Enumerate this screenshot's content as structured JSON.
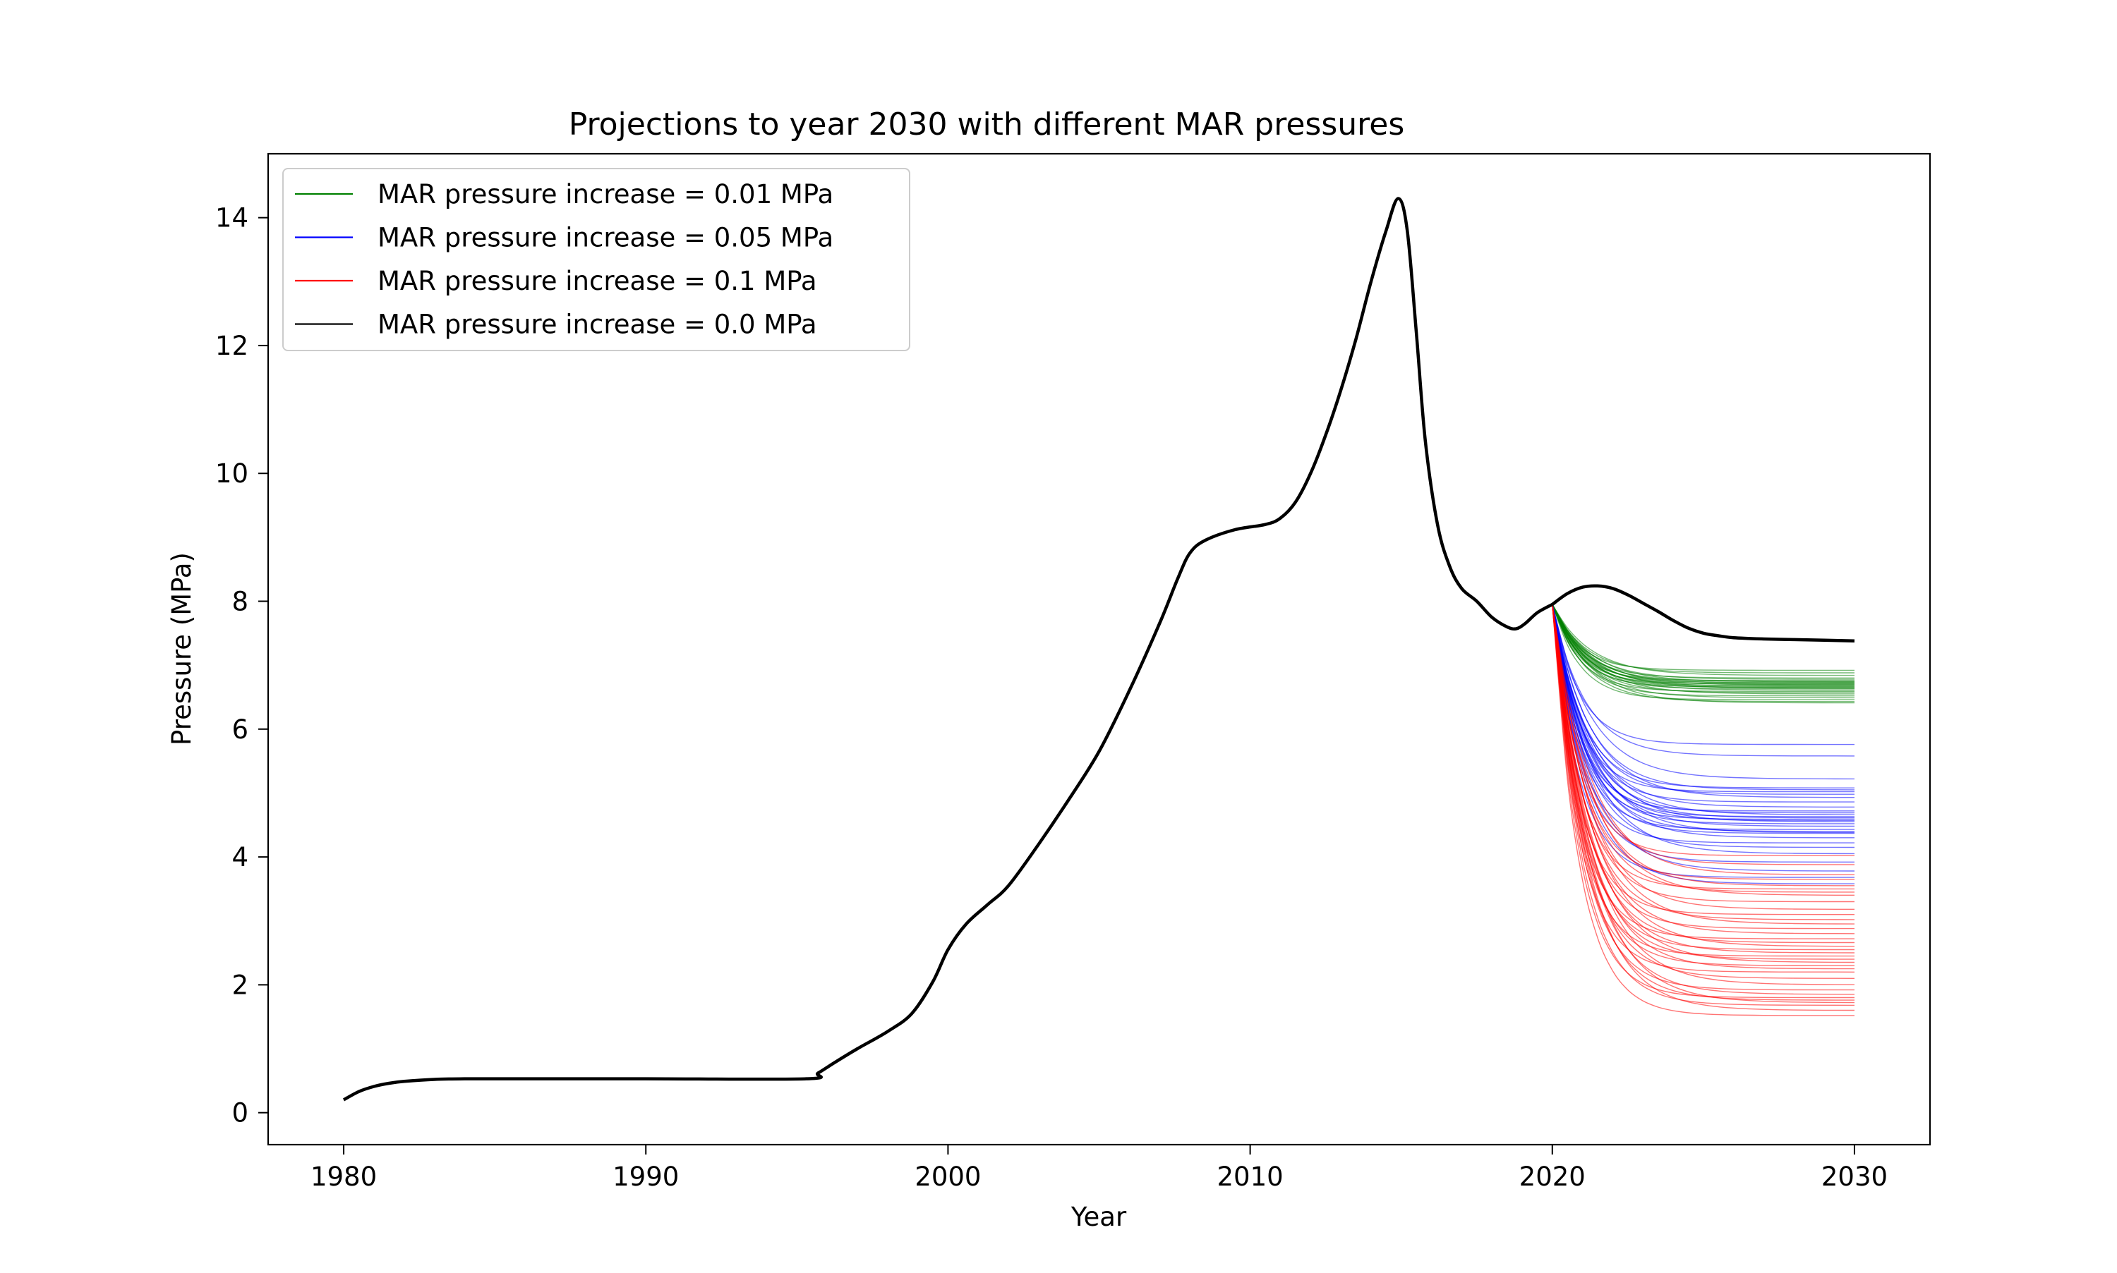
{
  "chart_data": {
    "type": "line",
    "title": "Projections to year 2030 with different MAR pressures",
    "xlabel": "Year",
    "ylabel": "Pressure (MPa)",
    "xlim": [
      1977.5,
      2032.5
    ],
    "ylim": [
      -0.5,
      15.0
    ],
    "xticks": [
      1980,
      1990,
      2000,
      2010,
      2020,
      2030
    ],
    "yticks": [
      0,
      2,
      4,
      6,
      8,
      10,
      12,
      14
    ],
    "grid": false,
    "legend_position": "upper-left",
    "legend": [
      {
        "label": "MAR pressure increase = 0.01 MPa",
        "color": "#008000"
      },
      {
        "label": "MAR pressure increase = 0.05 MPa",
        "color": "#0000ff"
      },
      {
        "label": "MAR pressure increase = 0.1 MPa",
        "color": "#ff0000"
      },
      {
        "label": "MAR pressure increase = 0.0 MPa",
        "color": "#000000"
      }
    ],
    "history": {
      "name": "MAR pressure increase = 0.0 MPa",
      "color": "#000000",
      "x": [
        1980,
        1980.5,
        1981,
        1981.5,
        1982,
        1983,
        1984,
        1986,
        1990,
        1995.3,
        1995.7,
        1996.3,
        1997,
        1998,
        1998.8,
        1999.5,
        2000,
        2000.6,
        2001.3,
        2002,
        2003,
        2004,
        2005,
        2006,
        2007,
        2007.6,
        2008,
        2008.5,
        2009.5,
        2010.5,
        2011,
        2011.5,
        2012,
        2012.5,
        2013,
        2013.5,
        2014,
        2014.5,
        2014.9,
        2015.2,
        2015.5,
        2015.8,
        2016.2,
        2016.6,
        2017,
        2017.5,
        2018,
        2018.5,
        2018.8,
        2019.1,
        2019.5,
        2020
      ],
      "y": [
        0.2,
        0.33,
        0.41,
        0.46,
        0.49,
        0.52,
        0.53,
        0.53,
        0.53,
        0.53,
        0.62,
        0.8,
        1.0,
        1.27,
        1.55,
        2.05,
        2.55,
        2.95,
        3.25,
        3.55,
        4.2,
        4.9,
        5.65,
        6.6,
        7.65,
        8.35,
        8.75,
        8.95,
        9.12,
        9.2,
        9.3,
        9.55,
        10.0,
        10.6,
        11.3,
        12.1,
        13.0,
        13.8,
        14.3,
        13.8,
        12.2,
        10.5,
        9.2,
        8.55,
        8.2,
        8.0,
        7.75,
        7.6,
        7.57,
        7.65,
        7.82,
        7.95
      ]
    },
    "projection_x": [
      2020,
      2020.5,
      2021,
      2021.5,
      2022,
      2022.5,
      2023,
      2023.5,
      2024,
      2024.5,
      2025,
      2025.5,
      2026,
      2027,
      2028,
      2029,
      2030
    ],
    "baseline_projection": {
      "name": "MAR pressure increase = 0.0 MPa",
      "color": "#000000",
      "y": [
        7.95,
        8.12,
        8.22,
        8.24,
        8.2,
        8.1,
        7.97,
        7.84,
        7.7,
        7.58,
        7.5,
        7.46,
        7.43,
        7.41,
        7.4,
        7.39,
        7.38
      ]
    },
    "ensembles": [
      {
        "name": "MAR pressure increase = 0.01 MPa",
        "color": "#008000",
        "start": 7.95,
        "end_values": [
          6.92,
          6.88,
          6.84,
          6.8,
          6.78,
          6.76,
          6.75,
          6.74,
          6.73,
          6.72,
          6.71,
          6.7,
          6.69,
          6.68,
          6.67,
          6.66,
          6.65,
          6.64,
          6.63,
          6.61,
          6.59,
          6.57,
          6.55,
          6.52,
          6.49,
          6.46,
          6.43,
          6.41
        ]
      },
      {
        "name": "MAR pressure increase = 0.05 MPa",
        "color": "#0000ff",
        "start": 7.95,
        "end_values": [
          5.76,
          5.58,
          5.22,
          5.08,
          5.05,
          5.02,
          4.98,
          4.93,
          4.86,
          4.78,
          4.72,
          4.69,
          4.66,
          4.63,
          4.61,
          4.59,
          4.57,
          4.55,
          4.52,
          4.48,
          4.43,
          4.4,
          4.38,
          4.37,
          4.3,
          4.22,
          4.15,
          4.05,
          3.92,
          3.78,
          3.68,
          3.58
        ]
      },
      {
        "name": "MAR pressure increase = 0.1 MPa",
        "color": "#ff0000",
        "start": 7.95,
        "end_values": [
          4.02,
          3.88,
          3.72,
          3.65,
          3.55,
          3.5,
          3.45,
          3.4,
          3.3,
          3.18,
          3.1,
          3.02,
          2.95,
          2.88,
          2.8,
          2.72,
          2.66,
          2.6,
          2.55,
          2.5,
          2.45,
          2.4,
          2.35,
          2.3,
          2.25,
          2.2,
          2.1,
          2.0,
          1.92,
          1.85,
          1.8,
          1.76,
          1.72,
          1.68,
          1.6,
          1.52
        ]
      }
    ]
  }
}
